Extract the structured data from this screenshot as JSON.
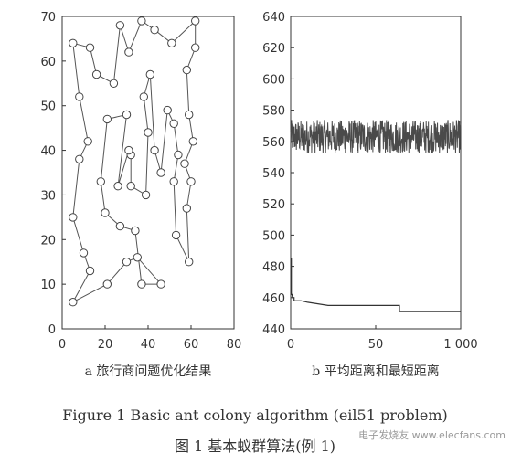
{
  "chart_data": [
    {
      "type": "scatter",
      "title": "",
      "xlabel": "",
      "ylabel": "",
      "xlim": [
        0,
        80
      ],
      "ylim": [
        0,
        70
      ],
      "x_ticks": [
        "0",
        "20",
        "40",
        "60",
        "80"
      ],
      "y_ticks": [
        "0",
        "10",
        "20",
        "30",
        "40",
        "50",
        "60",
        "70"
      ],
      "grid": false,
      "connected_tour": true,
      "subcaption": "a 旅行商问题优化结果",
      "points": [
        [
          5,
          64
        ],
        [
          13,
          63
        ],
        [
          16,
          57
        ],
        [
          24,
          55
        ],
        [
          27,
          68
        ],
        [
          31,
          62
        ],
        [
          37,
          69
        ],
        [
          43,
          67
        ],
        [
          51,
          64
        ],
        [
          62,
          69
        ],
        [
          62,
          63
        ],
        [
          58,
          58
        ],
        [
          59,
          48
        ],
        [
          61,
          42
        ],
        [
          57,
          37
        ],
        [
          60,
          33
        ],
        [
          58,
          27
        ],
        [
          59,
          15
        ],
        [
          53,
          21
        ],
        [
          52,
          33
        ],
        [
          54,
          39
        ],
        [
          52,
          46
        ],
        [
          49,
          49
        ],
        [
          46,
          35
        ],
        [
          43,
          40
        ],
        [
          41,
          57
        ],
        [
          38,
          52
        ],
        [
          40,
          44
        ],
        [
          39,
          30
        ],
        [
          32,
          32
        ],
        [
          32,
          39
        ],
        [
          31,
          40
        ],
        [
          26,
          32
        ],
        [
          30,
          48
        ],
        [
          21,
          47
        ],
        [
          18,
          33
        ],
        [
          20,
          26
        ],
        [
          27,
          23
        ],
        [
          34,
          22
        ],
        [
          37,
          10
        ],
        [
          46,
          10
        ],
        [
          35,
          16
        ],
        [
          30,
          15
        ],
        [
          21,
          10
        ],
        [
          5,
          6
        ],
        [
          13,
          13
        ],
        [
          10,
          17
        ],
        [
          5,
          25
        ],
        [
          8,
          38
        ],
        [
          12,
          42
        ],
        [
          8,
          52
        ]
      ]
    },
    {
      "type": "line",
      "title": "",
      "xlabel": "",
      "ylabel": "",
      "xlim": [
        0,
        1000
      ],
      "ylim": [
        440,
        640
      ],
      "x_ticks": [
        "0",
        "50",
        "1 000"
      ],
      "y_ticks": [
        "440",
        "460",
        "480",
        "500",
        "520",
        "540",
        "560",
        "580",
        "600",
        "620",
        "640"
      ],
      "grid": false,
      "subcaption": "b 平均距离和最短距离",
      "series": [
        {
          "name": "",
          "band": true,
          "mean": 563,
          "range": [
            552,
            576
          ]
        },
        {
          "name": "",
          "step": true,
          "x": [
            0,
            4,
            4,
            8,
            10,
            20,
            20,
            60,
            100,
            160,
            220,
            260,
            280,
            300,
            300,
            600,
            640,
            640,
            1000
          ],
          "y": [
            485,
            485,
            462,
            462,
            460,
            460,
            458,
            458,
            457,
            456,
            455,
            455,
            455,
            455,
            455,
            455,
            455,
            451,
            451
          ]
        }
      ]
    }
  ],
  "caption_en": "Figure 1   Basic ant colony algorithm (eil51 problem)",
  "caption_zh": "图 1   基本蚁群算法(例 1)",
  "watermark": "电子发烧友 www.elecfans.com"
}
